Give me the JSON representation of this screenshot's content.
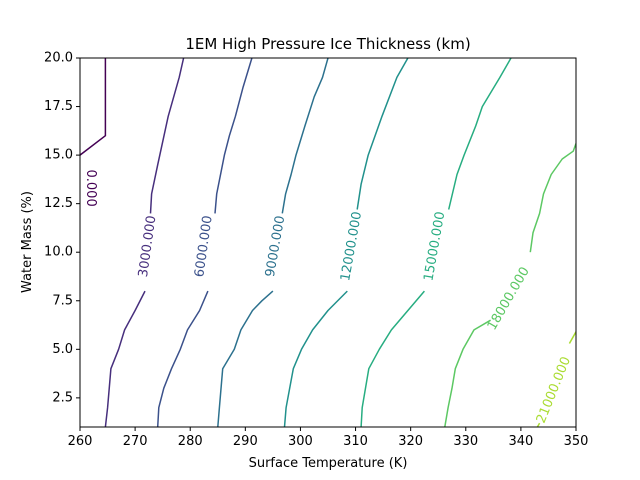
{
  "chart_data": {
    "type": "contour",
    "title": "1EM High Pressure Ice Thickness (km)",
    "xlabel": "Surface Temperature (K)",
    "ylabel": "Water Mass (%)",
    "xlim": [
      260,
      350
    ],
    "ylim": [
      1,
      20
    ],
    "xticks": [
      260,
      270,
      280,
      290,
      300,
      310,
      320,
      330,
      340,
      350
    ],
    "yticks": [
      2.5,
      5.0,
      7.5,
      10.0,
      12.5,
      15.0,
      17.5,
      20.0
    ],
    "xtick_labels": [
      "260",
      "270",
      "280",
      "290",
      "300",
      "310",
      "320",
      "330",
      "340",
      "350"
    ],
    "ytick_labels": [
      "2.5",
      "5.0",
      "7.5",
      "10.0",
      "12.5",
      "15.0",
      "17.5",
      "20.0"
    ],
    "grid": false,
    "levels": [
      {
        "value": 0,
        "label": "0.000",
        "color": "#440154",
        "label_at": [
          261.9,
          13.3
        ],
        "label_angle": 90,
        "points": [
          [
            260.0,
            15.0
          ],
          [
            264.6,
            16.0
          ],
          [
            264.6,
            20.0
          ]
        ]
      },
      {
        "value": 3000,
        "label": "3000.000",
        "color": "#472f7d",
        "label_at": [
          272.3,
          10.3
        ],
        "label_angle": -82,
        "points": [
          [
            264.6,
            1.0
          ],
          [
            265.0,
            2.0
          ],
          [
            265.6,
            4.0
          ],
          [
            267.0,
            5.0
          ],
          [
            268.1,
            6.0
          ],
          [
            270.0,
            7.0
          ],
          [
            271.8,
            8.0
          ],
          null,
          [
            272.8,
            12.0
          ],
          [
            273.0,
            13.0
          ],
          [
            274.1,
            14.5
          ],
          [
            276.0,
            17.0
          ],
          [
            278.0,
            19.0
          ],
          [
            278.8,
            20.0
          ]
        ]
      },
      {
        "value": 6000,
        "label": "6000.000",
        "color": "#3b518b",
        "label_at": [
          282.5,
          10.3
        ],
        "label_angle": -82,
        "points": [
          [
            274.1,
            1.0
          ],
          [
            274.3,
            2.0
          ],
          [
            275.2,
            3.0
          ],
          [
            276.6,
            4.0
          ],
          [
            278.2,
            5.0
          ],
          [
            279.5,
            6.0
          ],
          [
            281.7,
            7.0
          ],
          [
            283.2,
            8.0
          ],
          null,
          [
            284.5,
            12.0
          ],
          [
            284.8,
            13.0
          ],
          [
            286.2,
            15.0
          ],
          [
            287.1,
            16.0
          ],
          [
            288.2,
            17.0
          ],
          [
            289.6,
            18.5
          ],
          [
            291.2,
            20.0
          ]
        ]
      },
      {
        "value": 9000,
        "label": "9000.000",
        "color": "#2c718e",
        "label_at": [
          295.5,
          10.3
        ],
        "label_angle": -80,
        "points": [
          [
            285.0,
            1.0
          ],
          [
            285.3,
            2.0
          ],
          [
            285.9,
            4.0
          ],
          [
            288.0,
            5.0
          ],
          [
            289.2,
            6.0
          ],
          [
            291.3,
            7.0
          ],
          [
            293.0,
            7.5
          ],
          [
            295.0,
            8.0
          ],
          null,
          [
            296.7,
            12.0
          ],
          [
            297.3,
            13.0
          ],
          [
            298.3,
            14.0
          ],
          [
            299.2,
            15.0
          ],
          [
            300.8,
            16.5
          ],
          [
            302.5,
            18.0
          ],
          [
            304.0,
            19.0
          ],
          [
            305.0,
            20.0
          ]
        ]
      },
      {
        "value": 12000,
        "label": "12000.000",
        "color": "#21918c",
        "label_at": [
          309.3,
          10.3
        ],
        "label_angle": -80,
        "points": [
          [
            297.1,
            1.0
          ],
          [
            297.4,
            2.0
          ],
          [
            298.7,
            4.0
          ],
          [
            300.2,
            5.0
          ],
          [
            302.2,
            6.0
          ],
          [
            305.0,
            7.0
          ],
          [
            308.5,
            8.0
          ],
          null,
          [
            310.3,
            12.2
          ],
          [
            311.0,
            13.5
          ],
          [
            312.3,
            15.0
          ],
          [
            314.8,
            17.0
          ],
          [
            317.5,
            19.0
          ],
          [
            319.5,
            20.0
          ]
        ]
      },
      {
        "value": 15000,
        "label": "15000.000",
        "color": "#27ad81",
        "label_at": [
          324.4,
          10.3
        ],
        "label_angle": -80,
        "points": [
          [
            311.0,
            1.0
          ],
          [
            311.2,
            2.0
          ],
          [
            312.4,
            4.0
          ],
          [
            314.3,
            5.0
          ],
          [
            316.5,
            6.0
          ],
          [
            319.5,
            7.0
          ],
          [
            322.5,
            8.0
          ],
          null,
          [
            326.9,
            12.2
          ],
          [
            328.4,
            14.0
          ],
          [
            329.7,
            15.0
          ],
          [
            331.8,
            16.5
          ],
          [
            333.0,
            17.5
          ],
          [
            336.2,
            19.0
          ],
          [
            338.2,
            20.0
          ]
        ]
      },
      {
        "value": 18000,
        "label": "18000.000",
        "color": "#5cc863",
        "label_at": [
          337.8,
          7.6
        ],
        "label_angle": -60,
        "points": [
          [
            326.2,
            1.0
          ],
          [
            326.8,
            2.0
          ],
          [
            327.5,
            3.0
          ],
          [
            328.1,
            4.0
          ],
          [
            329.5,
            5.0
          ],
          [
            331.5,
            6.0
          ],
          [
            334.5,
            6.5
          ],
          null,
          [
            341.7,
            10.0
          ],
          [
            342.2,
            11.0
          ],
          [
            343.4,
            12.0
          ],
          [
            344.1,
            13.0
          ],
          [
            345.5,
            14.0
          ],
          [
            347.5,
            14.8
          ],
          [
            349.5,
            15.2
          ],
          [
            350.0,
            15.6
          ]
        ]
      },
      {
        "value": 21000,
        "label": "21000.000",
        "color": "#aadc32",
        "label_at": [
          346.0,
          2.9
        ],
        "label_angle": -68,
        "points": [
          [
            343.0,
            1.0
          ],
          [
            343.4,
            1.2
          ],
          null,
          [
            348.8,
            5.3
          ],
          [
            350.0,
            5.9
          ]
        ]
      }
    ]
  }
}
